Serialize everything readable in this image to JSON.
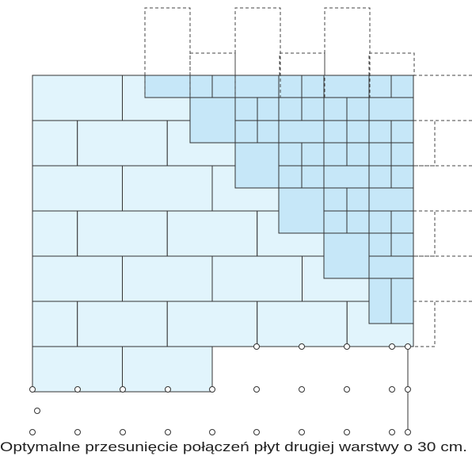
{
  "caption": "Optymalne przesunięcie połączeń płyt drugiej warstwy o 30 cm."
}
